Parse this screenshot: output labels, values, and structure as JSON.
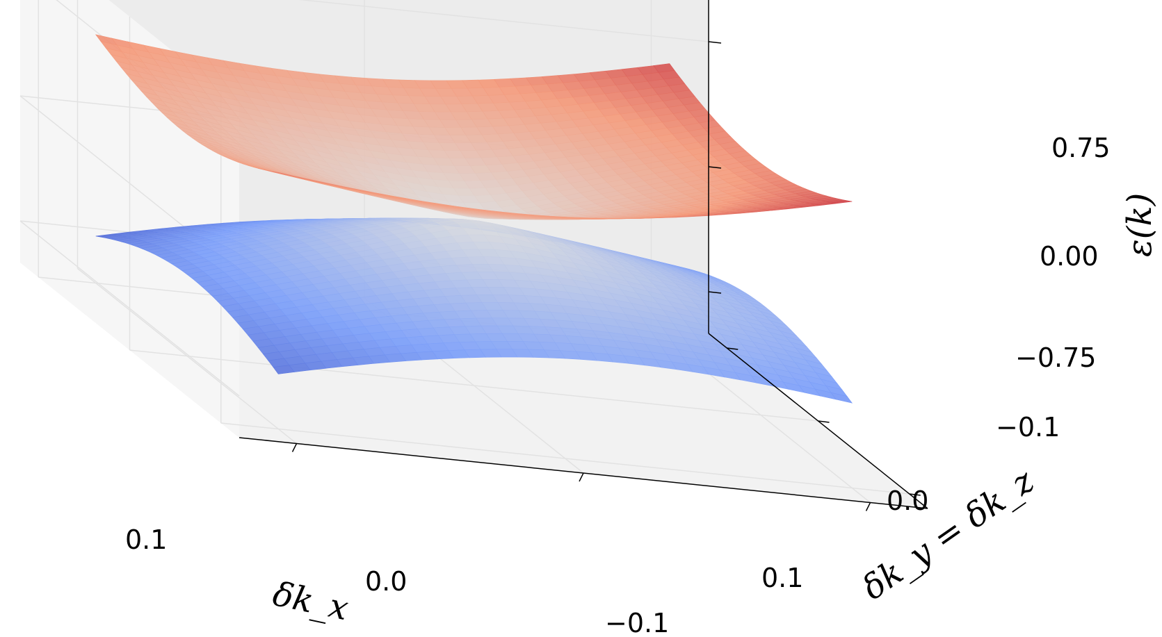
{
  "chart_data": {
    "type": "surface3d",
    "title": "",
    "description_of_function": "two bands epsilon(k) = ± ... over (dkx, dky=dkz) grid",
    "x_axis": {
      "label": "δk_x",
      "ticks": [
        "0.1",
        "0.0",
        "−0.1"
      ],
      "range": [
        -0.12,
        0.12
      ]
    },
    "y_axis": {
      "label": "δk_y = δk_z",
      "ticks": [
        "−0.1",
        "0.0",
        "0.1"
      ],
      "range": [
        -0.12,
        0.12
      ]
    },
    "z_axis": {
      "label": "ε(k)",
      "ticks": [
        "0.75",
        "0.00",
        "−0.75"
      ],
      "range": [
        -1.0,
        1.0
      ]
    },
    "colormap": "coolwarm",
    "colors": {
      "low": "#3b4cc0",
      "mid": "#dddddd",
      "high": "#b40426"
    },
    "grid": true
  }
}
